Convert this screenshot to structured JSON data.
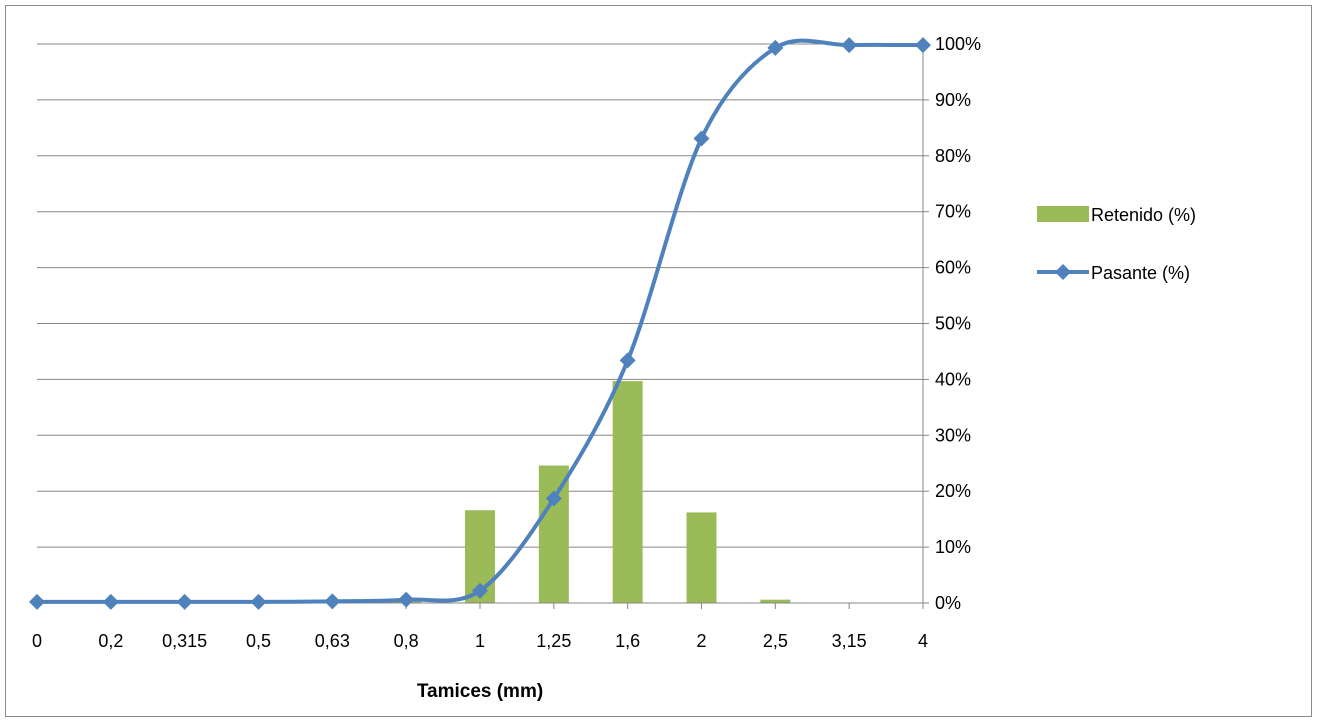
{
  "chart_data": {
    "type": "bar+line",
    "categories": [
      "0",
      "0,2",
      "0,315",
      "0,5",
      "0,63",
      "0,8",
      "1",
      "1,25",
      "1,6",
      "2",
      "2,5",
      "3,15",
      "4"
    ],
    "series": [
      {
        "name": "Retenido (%)",
        "type": "bar",
        "color": "#9bbb59",
        "values": [
          0,
          0,
          0,
          0,
          0,
          0.4,
          16.6,
          24.6,
          39.7,
          16.2,
          0.6,
          0,
          0
        ]
      },
      {
        "name": "Pasante (%)",
        "type": "line",
        "color": "#4f81bd",
        "marker": "diamond",
        "values": [
          0.2,
          0.2,
          0.2,
          0.2,
          0.3,
          0.6,
          2.2,
          18.7,
          43.4,
          83.1,
          99.3,
          99.8,
          99.8
        ]
      }
    ],
    "xlabel": "Tamices (mm)",
    "ylabel": "",
    "ylim": [
      0,
      100
    ],
    "y_ticks": [
      "0%",
      "10%",
      "20%",
      "30%",
      "40%",
      "50%",
      "60%",
      "70%",
      "80%",
      "90%",
      "100%"
    ],
    "y_axis_side": "right",
    "grid": true,
    "legend_position": "right"
  }
}
